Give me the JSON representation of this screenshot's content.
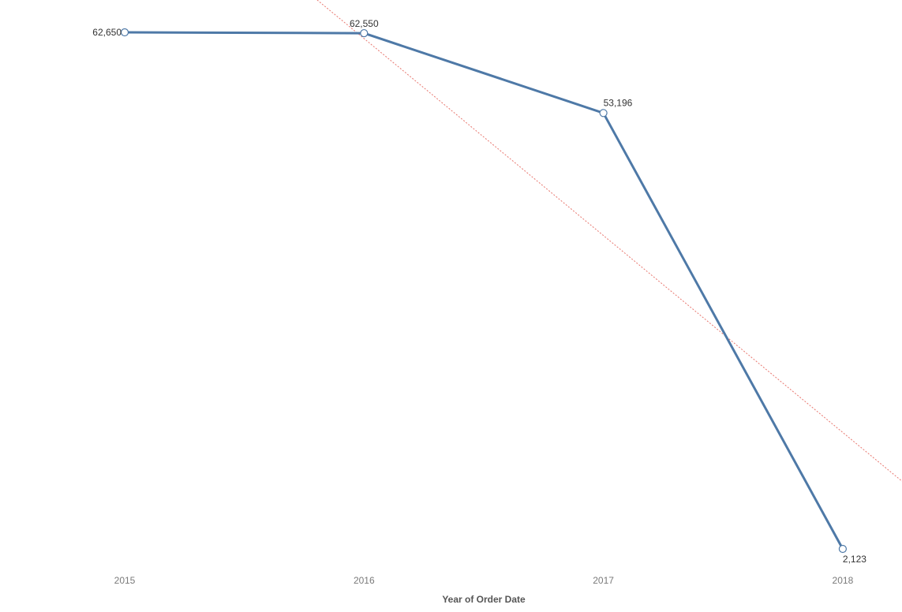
{
  "chart_data": {
    "type": "line",
    "categories": [
      "2015",
      "2016",
      "2017",
      "2018"
    ],
    "series": [
      {
        "values": [
          62650,
          62550,
          53196,
          2123
        ],
        "labels": [
          "62,650",
          "62,550",
          "53,196",
          "2,123"
        ]
      }
    ],
    "xlabel": "Year of Order Date",
    "ylabel": "",
    "ylim": [
      2123,
      62650
    ],
    "trend_line": {
      "start": [
        2015,
        85000
      ],
      "end": [
        2018.25,
        10000
      ]
    },
    "grid": false,
    "colors": {
      "line": "#4e79a7",
      "trend": "#e8776f",
      "marker_fill": "#ffffff"
    }
  }
}
